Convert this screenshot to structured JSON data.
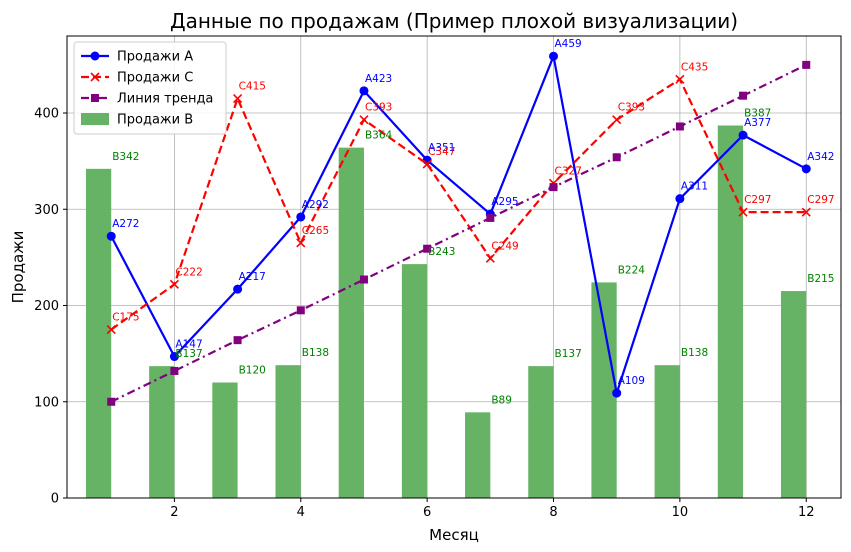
{
  "chart_data": {
    "type": "bar",
    "title": "Данные по продажам (Пример плохой визуализации)",
    "xlabel": "Месяц",
    "ylabel": "Продажи",
    "xlim": [
      0.3,
      12.55
    ],
    "ylim": [
      0,
      480
    ],
    "xticks": [
      2,
      4,
      6,
      8,
      10,
      12
    ],
    "yticks": [
      0,
      100,
      200,
      300,
      400
    ],
    "grid": true,
    "legend_position": "top-left",
    "x": [
      1,
      2,
      3,
      4,
      5,
      6,
      7,
      8,
      9,
      10,
      11,
      12
    ],
    "series": [
      {
        "name": "Продажи A",
        "kind": "line",
        "color": "#0000ff",
        "line_style": "solid",
        "marker": "circle",
        "values": [
          272,
          147,
          217,
          292,
          423,
          351,
          295,
          459,
          109,
          311,
          377,
          342
        ],
        "labels": [
          "A272",
          "A147",
          "A217",
          "A292",
          "A423",
          "A351",
          "A295",
          "A459",
          "A109",
          "A311",
          "A377",
          "A342"
        ]
      },
      {
        "name": "Продажи C",
        "kind": "line",
        "color": "#ff0000",
        "line_style": "dashed",
        "marker": "x",
        "values": [
          175,
          222,
          415,
          265,
          393,
          347,
          249,
          327,
          393,
          435,
          297,
          297
        ],
        "labels": [
          "C175",
          "C222",
          "C415",
          "C265",
          "C393",
          "C347",
          "C249",
          "C327",
          "C393",
          "C435",
          "C297",
          "C297"
        ]
      },
      {
        "name": "Линия тренда",
        "kind": "line",
        "color": "#800080",
        "line_style": "dashdot",
        "marker": "square",
        "values": [
          100,
          132,
          164,
          195,
          227,
          259,
          291,
          323,
          354,
          386,
          418,
          450
        ],
        "labels": []
      },
      {
        "name": "Продажи B",
        "kind": "bar",
        "color": "#66b366",
        "label_color": "#008000",
        "bar_offset": -0.2,
        "bar_width": 0.4,
        "values": [
          342,
          137,
          120,
          138,
          364,
          243,
          89,
          137,
          224,
          138,
          387,
          215
        ],
        "labels": [
          "B342",
          "B137",
          "B120",
          "B138",
          "B364",
          "B243",
          "B89",
          "B137",
          "B224",
          "B138",
          "B387",
          "B215"
        ]
      }
    ]
  }
}
